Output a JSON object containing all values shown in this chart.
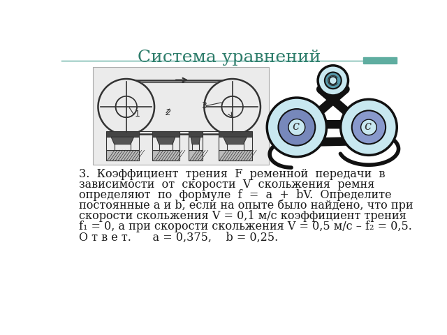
{
  "title": "Система уравнений",
  "title_color": "#2E7D6B",
  "title_fontsize": 18,
  "line_color": "#5FADA0",
  "background_color": "#FFFFFF",
  "problem_text_lines": [
    {
      "text": "3.  Коэффициент  трения  ",
      "style": "normal"
    },
    {
      "text": "F",
      "style": "italic"
    },
    {
      "text": "  ременной  передачи  в",
      "style": "normal"
    }
  ],
  "text_fontsize": 11.5,
  "answer_fontsize": 11.5,
  "text_color": "#1A1A1A",
  "img_bg_color": "#E8E8E8",
  "belt_color": "#333333",
  "pulley_light": "#C8E8F0",
  "pulley_mid": "#8899BB",
  "pulley_dark": "#222222"
}
